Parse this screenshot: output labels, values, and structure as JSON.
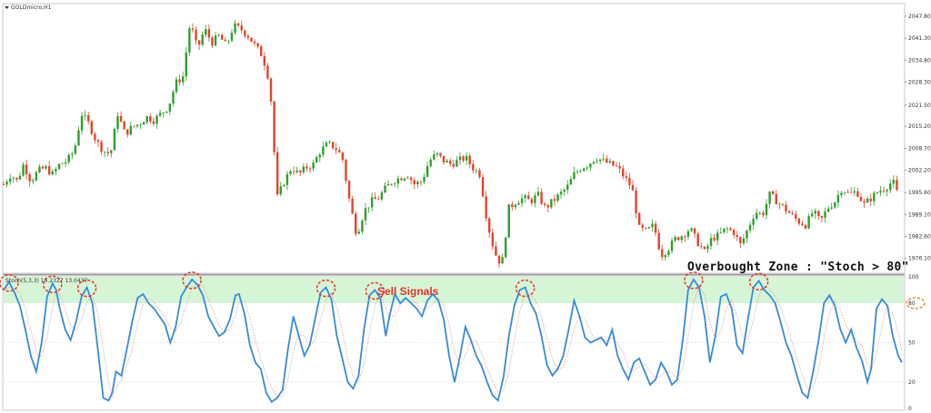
{
  "chart_data": [
    {
      "type": "candlestick",
      "symbol": "GOLDmicro,H1",
      "ylim": [
        1972,
        2051
      ],
      "y_ticks": [
        "2047.80",
        "2041.30",
        "2034.80",
        "2028.30",
        "2021.50",
        "2015.20",
        "2008.70",
        "2002.20",
        "1995.60",
        "1989.10",
        "1982.60",
        "1976.10"
      ],
      "y_tick_values": [
        2047.8,
        2041.3,
        2034.8,
        2028.3,
        2021.5,
        2015.2,
        2008.7,
        2002.2,
        1995.6,
        1989.1,
        1982.6,
        1976.1
      ],
      "bull_color": "#2f9e2f",
      "bear_color": "#e2442b",
      "close_path": [
        [
          0,
          1998
        ],
        [
          8,
          2001
        ],
        [
          15,
          1999
        ],
        [
          22,
          2004
        ],
        [
          30,
          1999
        ],
        [
          38,
          2002
        ],
        [
          46,
          2003
        ],
        [
          54,
          2001
        ],
        [
          62,
          2004
        ],
        [
          70,
          2005
        ],
        [
          78,
          2008
        ],
        [
          86,
          2019
        ],
        [
          94,
          2016
        ],
        [
          102,
          2011
        ],
        [
          110,
          2008
        ],
        [
          118,
          2007
        ],
        [
          126,
          2019
        ],
        [
          134,
          2013
        ],
        [
          142,
          2015
        ],
        [
          150,
          2016
        ],
        [
          158,
          2018
        ],
        [
          166,
          2017
        ],
        [
          174,
          2019
        ],
        [
          182,
          2021
        ],
        [
          190,
          2028
        ],
        [
          198,
          2030
        ],
        [
          206,
          2046
        ],
        [
          214,
          2038
        ],
        [
          222,
          2044
        ],
        [
          230,
          2040
        ],
        [
          238,
          2042
        ],
        [
          246,
          2039
        ],
        [
          254,
          2045
        ],
        [
          262,
          2044
        ],
        [
          270,
          2042
        ],
        [
          278,
          2039
        ],
        [
          286,
          2036
        ],
        [
          294,
          2028
        ],
        [
          302,
          1994
        ],
        [
          310,
          1999
        ],
        [
          318,
          2003
        ],
        [
          326,
          2001
        ],
        [
          334,
          2003
        ],
        [
          342,
          2004
        ],
        [
          350,
          2008
        ],
        [
          358,
          2010
        ],
        [
          366,
          2009
        ],
        [
          374,
          2006
        ],
        [
          382,
          1993
        ],
        [
          390,
          1983
        ],
        [
          398,
          1990
        ],
        [
          406,
          1993
        ],
        [
          414,
          1994
        ],
        [
          422,
          1997
        ],
        [
          430,
          1999
        ],
        [
          438,
          2000
        ],
        [
          446,
          2001
        ],
        [
          454,
          1998
        ],
        [
          462,
          1999
        ],
        [
          470,
          2005
        ],
        [
          478,
          2007
        ],
        [
          486,
          2005
        ],
        [
          494,
          2004
        ],
        [
          502,
          2005
        ],
        [
          510,
          2006
        ],
        [
          518,
          2003
        ],
        [
          526,
          2001
        ],
        [
          534,
          1987
        ],
        [
          542,
          1978
        ],
        [
          550,
          1974
        ],
        [
          558,
          1991
        ],
        [
          566,
          1993
        ],
        [
          574,
          1994
        ],
        [
          582,
          1993
        ],
        [
          590,
          1995
        ],
        [
          598,
          1991
        ],
        [
          606,
          1993
        ],
        [
          614,
          1995
        ],
        [
          622,
          1997
        ],
        [
          630,
          2001
        ],
        [
          638,
          2003
        ],
        [
          646,
          2004
        ],
        [
          654,
          2006
        ],
        [
          662,
          2005
        ],
        [
          670,
          2004
        ],
        [
          678,
          2003
        ],
        [
          686,
          2000
        ],
        [
          694,
          1997
        ],
        [
          702,
          1985
        ],
        [
          710,
          1984
        ],
        [
          718,
          1986
        ],
        [
          726,
          1977
        ],
        [
          734,
          1979
        ],
        [
          742,
          1982
        ],
        [
          750,
          1983
        ],
        [
          758,
          1985
        ],
        [
          766,
          1981
        ],
        [
          774,
          1978
        ],
        [
          782,
          1982
        ],
        [
          790,
          1983
        ],
        [
          798,
          1985
        ],
        [
          806,
          1984
        ],
        [
          814,
          1980
        ],
        [
          822,
          1985
        ],
        [
          830,
          1990
        ],
        [
          838,
          1989
        ],
        [
          846,
          1995
        ],
        [
          854,
          1993
        ],
        [
          862,
          1991
        ],
        [
          870,
          1989
        ],
        [
          878,
          1987
        ],
        [
          886,
          1986
        ],
        [
          894,
          1990
        ],
        [
          902,
          1987
        ],
        [
          910,
          1991
        ],
        [
          918,
          1993
        ],
        [
          926,
          1997
        ],
        [
          934,
          1995
        ],
        [
          942,
          1996
        ],
        [
          950,
          1992
        ],
        [
          958,
          1994
        ],
        [
          966,
          1996
        ],
        [
          974,
          1997
        ],
        [
          982,
          1999
        ],
        [
          990,
          1993
        ]
      ],
      "annotation": "Overbought Zone : \"Stoch > 80\""
    },
    {
      "type": "line",
      "indicator_label": "Stoch(5,3,3) 16.2327 13.0437",
      "ylim": [
        0,
        100
      ],
      "y_ticks": [
        "100",
        "80",
        "50",
        "20",
        "0"
      ],
      "y_tick_values": [
        100,
        80,
        50,
        20,
        0
      ],
      "overbought_level": 80,
      "zone_color": "#d6f5d6",
      "series": [
        {
          "color": "#3a8ad6",
          "points": [
            [
              0,
              90
            ],
            [
              6,
              96
            ],
            [
              12,
              88
            ],
            [
              18,
              78
            ],
            [
              24,
              60
            ],
            [
              30,
              40
            ],
            [
              36,
              28
            ],
            [
              42,
              50
            ],
            [
              48,
              85
            ],
            [
              54,
              95
            ],
            [
              58,
              90
            ],
            [
              62,
              76
            ],
            [
              68,
              60
            ],
            [
              74,
              52
            ],
            [
              80,
              66
            ],
            [
              86,
              85
            ],
            [
              92,
              92
            ],
            [
              98,
              80
            ],
            [
              104,
              45
            ],
            [
              110,
              8
            ],
            [
              116,
              6
            ],
            [
              120,
              12
            ],
            [
              124,
              28
            ],
            [
              130,
              25
            ],
            [
              136,
              45
            ],
            [
              142,
              66
            ],
            [
              148,
              84
            ],
            [
              154,
              87
            ],
            [
              160,
              80
            ],
            [
              166,
              76
            ],
            [
              172,
              70
            ],
            [
              178,
              64
            ],
            [
              184,
              50
            ],
            [
              190,
              62
            ],
            [
              196,
              85
            ],
            [
              202,
              92
            ],
            [
              208,
              98
            ],
            [
              214,
              94
            ],
            [
              220,
              86
            ],
            [
              226,
              70
            ],
            [
              232,
              62
            ],
            [
              238,
              55
            ],
            [
              244,
              58
            ],
            [
              250,
              68
            ],
            [
              256,
              86
            ],
            [
              260,
              87
            ],
            [
              266,
              72
            ],
            [
              272,
              48
            ],
            [
              278,
              35
            ],
            [
              284,
              30
            ],
            [
              290,
              12
            ],
            [
              296,
              5
            ],
            [
              302,
              8
            ],
            [
              308,
              14
            ],
            [
              314,
              45
            ],
            [
              320,
              70
            ],
            [
              326,
              55
            ],
            [
              332,
              40
            ],
            [
              338,
              48
            ],
            [
              344,
              68
            ],
            [
              350,
              88
            ],
            [
              356,
              92
            ],
            [
              362,
              83
            ],
            [
              368,
              55
            ],
            [
              374,
              38
            ],
            [
              380,
              20
            ],
            [
              386,
              15
            ],
            [
              392,
              25
            ],
            [
              398,
              60
            ],
            [
              404,
              86
            ],
            [
              410,
              90
            ],
            [
              416,
              84
            ],
            [
              422,
              55
            ],
            [
              426,
              70
            ],
            [
              432,
              87
            ],
            [
              438,
              80
            ],
            [
              444,
              84
            ],
            [
              450,
              80
            ],
            [
              456,
              76
            ],
            [
              462,
              70
            ],
            [
              468,
              82
            ],
            [
              474,
              87
            ],
            [
              480,
              82
            ],
            [
              486,
              68
            ],
            [
              492,
              40
            ],
            [
              498,
              20
            ],
            [
              504,
              40
            ],
            [
              510,
              62
            ],
            [
              516,
              52
            ],
            [
              522,
              40
            ],
            [
              528,
              32
            ],
            [
              534,
              20
            ],
            [
              540,
              10
            ],
            [
              546,
              6
            ],
            [
              552,
              24
            ],
            [
              558,
              55
            ],
            [
              564,
              78
            ],
            [
              570,
              90
            ],
            [
              576,
              92
            ],
            [
              582,
              80
            ],
            [
              588,
              72
            ],
            [
              594,
              55
            ],
            [
              600,
              33
            ],
            [
              606,
              25
            ],
            [
              612,
              30
            ],
            [
              618,
              40
            ],
            [
              624,
              60
            ],
            [
              630,
              82
            ],
            [
              636,
              70
            ],
            [
              642,
              54
            ],
            [
              648,
              50
            ],
            [
              654,
              52
            ],
            [
              660,
              54
            ],
            [
              666,
              48
            ],
            [
              672,
              60
            ],
            [
              678,
              40
            ],
            [
              684,
              30
            ],
            [
              690,
              22
            ],
            [
              696,
              35
            ],
            [
              702,
              38
            ],
            [
              708,
              28
            ],
            [
              714,
              18
            ],
            [
              720,
              22
            ],
            [
              726,
              35
            ],
            [
              732,
              28
            ],
            [
              738,
              18
            ],
            [
              744,
              22
            ],
            [
              750,
              52
            ],
            [
              756,
              90
            ],
            [
              762,
              98
            ],
            [
              768,
              92
            ],
            [
              774,
              70
            ],
            [
              780,
              35
            ],
            [
              786,
              55
            ],
            [
              792,
              85
            ],
            [
              798,
              87
            ],
            [
              804,
              76
            ],
            [
              810,
              48
            ],
            [
              816,
              42
            ],
            [
              822,
              68
            ],
            [
              828,
              92
            ],
            [
              834,
              97
            ],
            [
              840,
              90
            ],
            [
              846,
              86
            ],
            [
              852,
              80
            ],
            [
              858,
              66
            ],
            [
              864,
              50
            ],
            [
              870,
              40
            ],
            [
              876,
              25
            ],
            [
              882,
              12
            ],
            [
              888,
              8
            ],
            [
              894,
              28
            ],
            [
              900,
              52
            ],
            [
              906,
              80
            ],
            [
              912,
              86
            ],
            [
              918,
              78
            ],
            [
              924,
              60
            ],
            [
              930,
              50
            ],
            [
              936,
              60
            ],
            [
              942,
              46
            ],
            [
              948,
              36
            ],
            [
              954,
              20
            ],
            [
              958,
              30
            ],
            [
              964,
              76
            ],
            [
              970,
              83
            ],
            [
              976,
              78
            ],
            [
              982,
              55
            ],
            [
              988,
              40
            ],
            [
              992,
              35
            ]
          ]
        }
      ],
      "annotation": "Sell Signals"
    }
  ]
}
